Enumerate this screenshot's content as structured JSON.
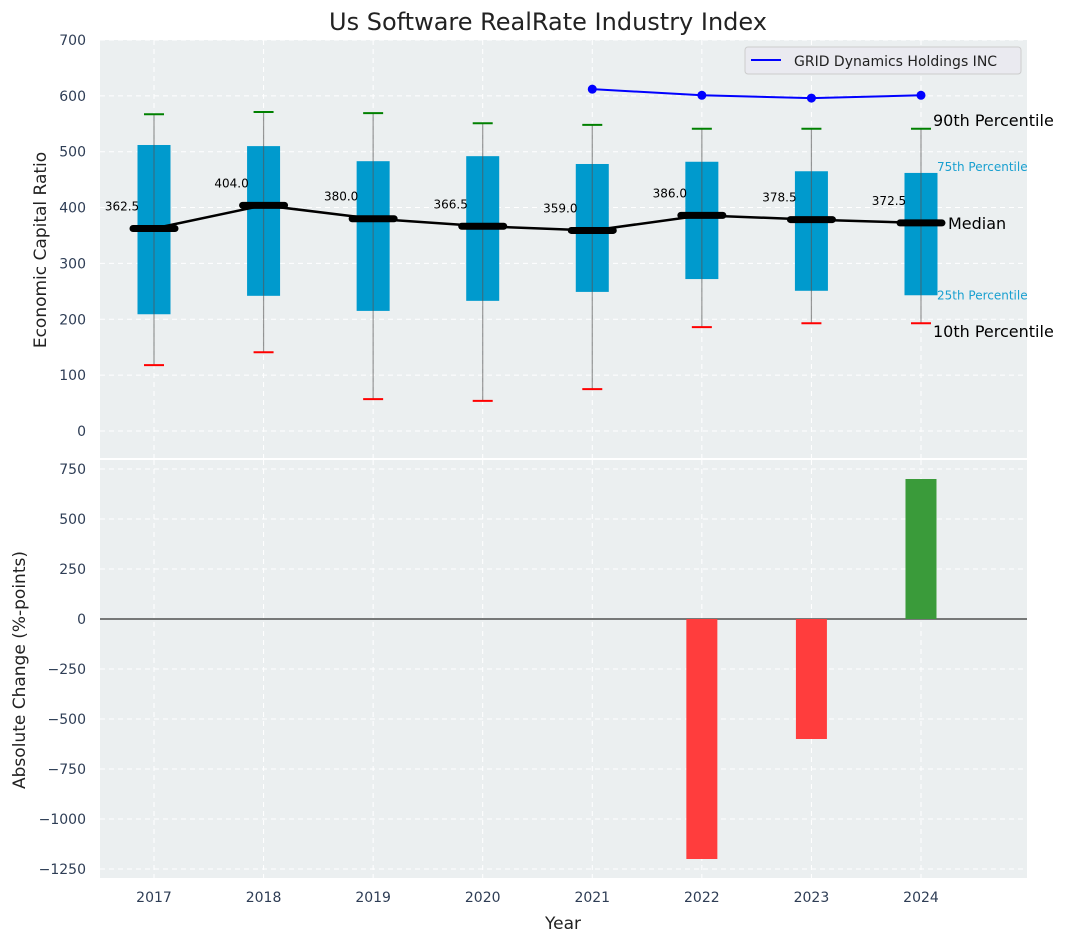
{
  "chart_data": [
    {
      "type": "box",
      "title": "Us Software RealRate Industry Index",
      "ylabel": "Economic Capital Ratio",
      "ylim": [
        -50,
        700
      ],
      "yticks": [
        0,
        100,
        200,
        300,
        400,
        500,
        600,
        700
      ],
      "grid": true,
      "categories": [
        "2017",
        "2018",
        "2019",
        "2020",
        "2021",
        "2022",
        "2023",
        "2024"
      ],
      "p10": [
        118,
        141,
        57,
        54,
        75,
        186,
        193,
        193
      ],
      "p25": [
        209,
        242,
        215,
        233,
        249,
        272,
        251,
        243
      ],
      "median": [
        362.5,
        404.0,
        380.0,
        366.5,
        359.0,
        386.0,
        378.5,
        372.5
      ],
      "median_labels": [
        "362.5",
        "404.0",
        "380.0",
        "366.5",
        "359.0",
        "386.0",
        "378.5",
        "372.5"
      ],
      "p75": [
        512,
        510,
        483,
        492,
        478,
        482,
        465,
        462
      ],
      "p90": [
        567,
        571,
        569,
        551,
        548,
        541,
        541,
        541
      ],
      "company": {
        "name": "GRID Dynamics Holdings INC",
        "categories": [
          "2021",
          "2022",
          "2023",
          "2024"
        ],
        "values": [
          612,
          601,
          596,
          601
        ]
      },
      "legend_placement": "top-right",
      "annotations": {
        "p90": "90th Percentile",
        "p75": "75th Percentile",
        "median": "Median",
        "p25": "25th Percentile",
        "p10": "10th Percentile"
      }
    },
    {
      "type": "bar",
      "xlabel": "Year",
      "ylabel": "Absolute Change (%-points)",
      "ylim": [
        -1290,
        760
      ],
      "yticks": [
        -1250,
        -1000,
        -750,
        -500,
        -250,
        0,
        250,
        500,
        750
      ],
      "ytick_labels": [
        "−1250",
        "−1000",
        "−750",
        "−500",
        "−250",
        "0",
        "250",
        "500",
        "750"
      ],
      "categories": [
        "2022",
        "2023",
        "2024"
      ],
      "values": [
        -1200,
        -600,
        700
      ],
      "grid": true
    }
  ],
  "colors": {
    "box": "#009acd",
    "median": "#000000",
    "p90_cap": "#008000",
    "p10_cap": "#ff0000",
    "company": "#0000ff",
    "positive": "#3a9b3a",
    "negative": "#ff3d3d",
    "plot_bg": "#ebeff0",
    "tick": "#2e3d55"
  }
}
